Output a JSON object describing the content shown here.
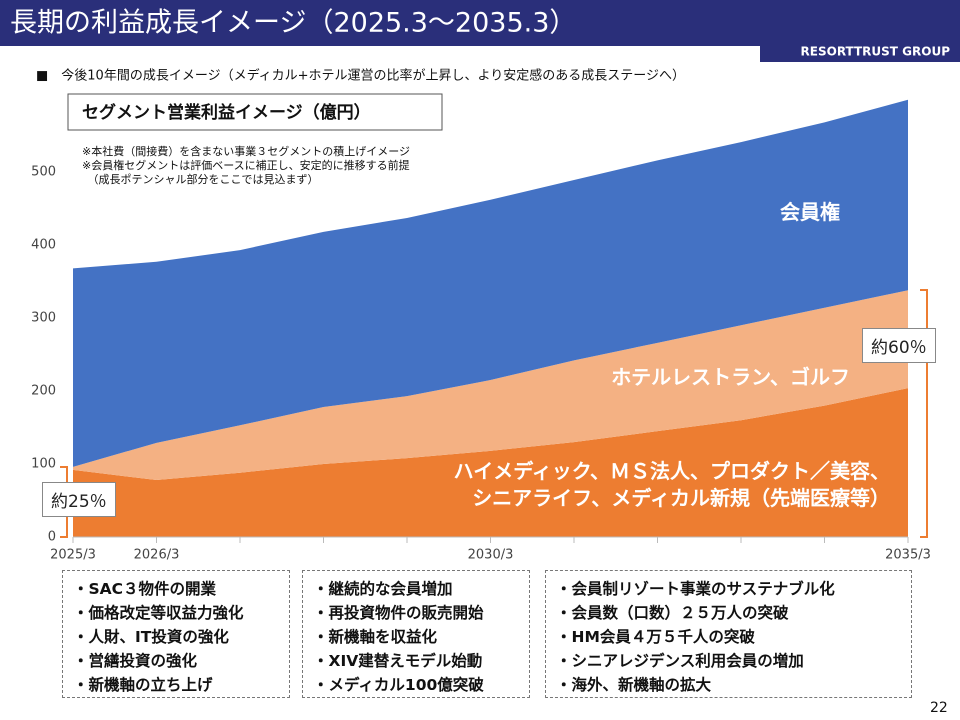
{
  "header": {
    "title": "長期の利益成長イメージ（2025.3〜2035.3）",
    "company": "RESORTTRUST GROUP",
    "subtitle": "■　今後10年間の成長イメージ（メディカル+ホテル運営の比率が上昇し、より安定感のある成長ステージへ）"
  },
  "chart_data": {
    "type": "stacked_area",
    "title": "セグメント営業利益イメージ（億円）",
    "notes": [
      "※本社費（間接費）を含まない事業３セグメントの積上げイメージ",
      "※会員権セグメントは評価ベースに補正し、安定的に推移する前提",
      "　（成長ポテンシャル部分をここでは見込まず）"
    ],
    "categories": [
      "2025/3",
      "2026/3",
      null,
      null,
      null,
      "2030/3",
      null,
      null,
      null,
      null,
      "2035/3"
    ],
    "series": [
      {
        "name": "ハイメディック、ＭＳ法人、プロダクト／美容、\nシニアライフ、メディカル新規（先端医療等）",
        "color": "#ed7d31",
        "values": [
          92,
          78,
          88,
          100,
          108,
          118,
          130,
          145,
          160,
          180,
          204
        ]
      },
      {
        "name": "ホテルレストラン、ゴルフ",
        "color": "#f4b183",
        "values": [
          4,
          51,
          65,
          78,
          85,
          97,
          112,
          121,
          130,
          134,
          134
        ]
      },
      {
        "name": "会員権",
        "color": "#4472c4",
        "values": [
          272,
          248,
          240,
          240,
          244,
          247,
          247,
          250,
          251,
          254,
          261
        ]
      }
    ],
    "ylim": [
      0,
      600
    ],
    "yticks": [
      0,
      100,
      200,
      300,
      400,
      500
    ],
    "annotations": [
      "約25％",
      "約60％"
    ]
  },
  "boxes": [
    [
      "・SAC３物件の開業",
      "・価格改定等収益力強化",
      "・人財、IT投資の強化",
      "・営繕投資の強化",
      "・新機軸の立ち上げ"
    ],
    [
      "・継続的な会員増加",
      "・再投資物件の販売開始",
      "・新機軸を収益化",
      "・XIV建替えモデル始動",
      "・メディカル100億突破"
    ],
    [
      "・会員制リゾート事業のサステナブル化",
      "・会員数（口数）２５万人の突破",
      "・HM会員４万５千人の突破",
      "・シニアレジデンス利用会員の増加",
      "・海外、新機軸の拡大"
    ]
  ],
  "page_number": "22"
}
